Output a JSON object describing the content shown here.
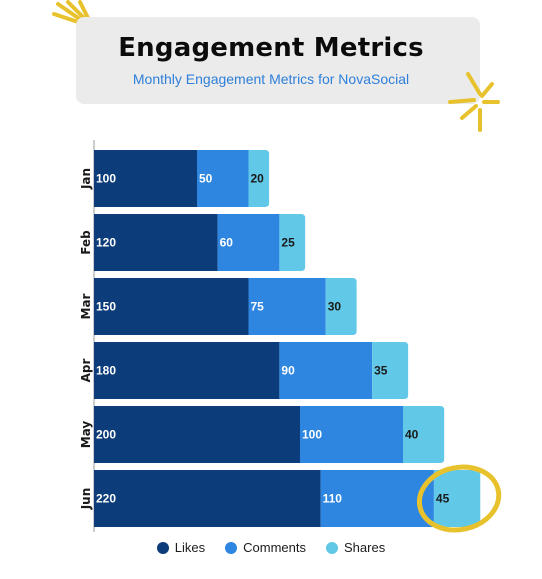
{
  "header": {
    "title": "Engagement Metrics",
    "subtitle": "Monthly Engagement Metrics for NovaSocial"
  },
  "colors": {
    "likes": "#0d3c7a",
    "comments": "#2e86e0",
    "shares": "#62c8e8",
    "accent": "#e8c22d"
  },
  "chart_data": {
    "type": "bar",
    "orientation": "horizontal",
    "stacked": true,
    "title": "Engagement Metrics",
    "subtitle": "Monthly Engagement Metrics for NovaSocial",
    "categories": [
      "Jan",
      "Feb",
      "Mar",
      "Apr",
      "May",
      "Jun"
    ],
    "series": [
      {
        "name": "Likes",
        "values": [
          100,
          120,
          150,
          180,
          200,
          220
        ]
      },
      {
        "name": "Comments",
        "values": [
          50,
          60,
          75,
          90,
          100,
          110
        ]
      },
      {
        "name": "Shares",
        "values": [
          20,
          25,
          30,
          35,
          40,
          45
        ]
      }
    ],
    "legend_position": "bottom",
    "grid": false,
    "data_labels": true,
    "highlight": "Jun Shares"
  }
}
